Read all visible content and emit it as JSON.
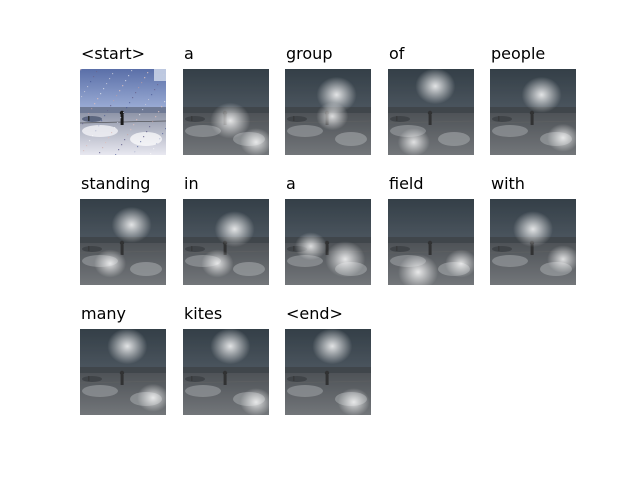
{
  "figure": {
    "tokens": [
      {
        "word": "<start>",
        "kind": "original",
        "spot": [
          0.45,
          0.2
        ],
        "spot2": [
          0.5,
          0.5
        ]
      },
      {
        "word": "a",
        "kind": "attention",
        "spot": [
          0.55,
          0.6
        ],
        "spot2": [
          0.85,
          0.85
        ]
      },
      {
        "word": "group",
        "kind": "attention",
        "spot": [
          0.6,
          0.3
        ],
        "spot2": [
          0.55,
          0.55
        ]
      },
      {
        "word": "of",
        "kind": "attention",
        "spot": [
          0.55,
          0.2
        ],
        "spot2": [
          0.3,
          0.85
        ]
      },
      {
        "word": "people",
        "kind": "attention",
        "spot": [
          0.6,
          0.3
        ],
        "spot2": [
          0.85,
          0.8
        ]
      },
      {
        "word": "standing",
        "kind": "attention",
        "spot": [
          0.6,
          0.3
        ],
        "spot2": [
          0.35,
          0.75
        ]
      },
      {
        "word": "in",
        "kind": "attention",
        "spot": [
          0.6,
          0.35
        ],
        "spot2": [
          0.4,
          0.75
        ]
      },
      {
        "word": "a",
        "kind": "attention",
        "spot": [
          0.7,
          0.7
        ],
        "spot2": [
          0.3,
          0.55
        ]
      },
      {
        "word": "field",
        "kind": "attention",
        "spot": [
          0.35,
          0.85
        ],
        "spot2": [
          0.85,
          0.75
        ]
      },
      {
        "word": "with",
        "kind": "attention",
        "spot": [
          0.5,
          0.35
        ],
        "spot2": [
          0.85,
          0.7
        ]
      },
      {
        "word": "many",
        "kind": "attention",
        "spot": [
          0.55,
          0.2
        ],
        "spot2": [
          0.85,
          0.8
        ]
      },
      {
        "word": "kites",
        "kind": "attention",
        "spot": [
          0.55,
          0.2
        ],
        "spot2": [
          0.85,
          0.85
        ]
      },
      {
        "word": "<end>",
        "kind": "attention",
        "spot": [
          0.55,
          0.2
        ],
        "spot2": [
          0.8,
          0.85
        ]
      }
    ]
  }
}
